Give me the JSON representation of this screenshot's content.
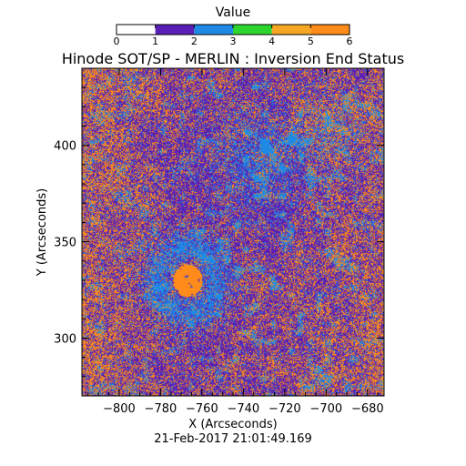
{
  "chart_data": {
    "type": "heatmap",
    "title": "Hinode SOT/SP - MERLIN : Inversion End Status",
    "subtitle": "21-Feb-2017 21:01:49.169",
    "xlabel": "X (Arcseconds)",
    "ylabel": "Y (Arcseconds)",
    "xlim": [
      -818,
      -672
    ],
    "ylim": [
      270,
      440
    ],
    "x_ticks": [
      -800,
      -780,
      -760,
      -740,
      -720,
      -700,
      -680
    ],
    "y_ticks": [
      300,
      350,
      400
    ],
    "colorbar": {
      "title": "Value",
      "range": [
        0,
        6
      ],
      "tick_labels": [
        "0",
        "1",
        "2",
        "3",
        "4",
        "5",
        "6"
      ],
      "levels": [
        {
          "value": 0,
          "color": "#ffffff"
        },
        {
          "value": 1,
          "color": "#5a1fb4"
        },
        {
          "value": 2,
          "color": "#1e8ae6"
        },
        {
          "value": 3,
          "color": "#2ed52e"
        },
        {
          "value": 4,
          "color": "#f5a623"
        },
        {
          "value": 5,
          "color": "#ff8c1a"
        },
        {
          "value": 6,
          "color": "#f01e0a"
        }
      ]
    },
    "map_colors": {
      "dominant": "#5a1fb4",
      "secondary": "#ff8c1a",
      "tertiary": "#1e8ae6"
    },
    "features": [
      {
        "label": "orange patch",
        "x": -767,
        "y": 330,
        "value": 5
      },
      {
        "label": "blue ring",
        "x": -767,
        "y": 330,
        "value": 2
      }
    ]
  }
}
